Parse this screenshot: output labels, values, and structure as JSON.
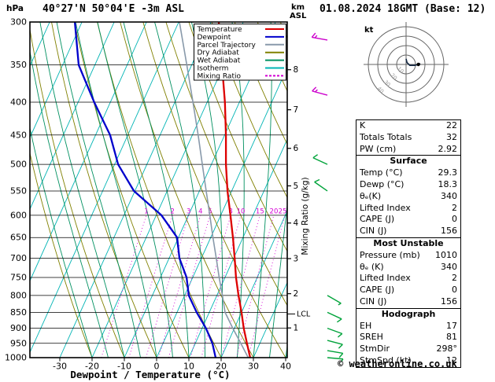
{
  "header": {
    "station_title": "40°27'N 50°04'E -3m ASL",
    "datetime_title": "01.08.2024 18GMT (Base: 12)"
  },
  "axes": {
    "pressure_unit_label": "hPa",
    "km_label": "km",
    "asl_label": "ASL",
    "x_axis_label": "Dewpoint / Temperature (°C)",
    "mixing_ratio_axis_label": "Mixing Ratio (g/kg)",
    "pressure_ticks_hpa": [
      300,
      350,
      400,
      450,
      500,
      550,
      600,
      650,
      700,
      750,
      800,
      850,
      900,
      950,
      1000
    ],
    "temperature_ticks_c": [
      -30,
      -20,
      -10,
      0,
      10,
      20,
      30,
      40
    ],
    "km_ticks": [
      [
        1,
        899
      ],
      [
        2,
        795
      ],
      [
        3,
        701
      ],
      [
        4,
        617
      ],
      [
        5,
        540
      ],
      [
        6,
        472
      ],
      [
        7,
        411
      ],
      [
        8,
        356
      ]
    ],
    "lcl": {
      "label": "LCL",
      "pressure_hpa": 855
    },
    "mixing_ratio_values_gkg": [
      1,
      2,
      3,
      4,
      5,
      8,
      10,
      15,
      20,
      25
    ]
  },
  "colors": {
    "temperature": "#dd0000",
    "dewpoint": "#0000cc",
    "parcel": "#8899aa",
    "dry_adiabat": "#808000",
    "wet_adiabat": "#009060",
    "isotherm": "#00b4b4",
    "mixing_ratio": "#d400d4",
    "barb_upper": "#cc00cc",
    "barb_lower": "#00a33a",
    "grid": "#000000"
  },
  "legend": {
    "items": [
      {
        "label": "Temperature",
        "color": "#dd0000",
        "dash": false
      },
      {
        "label": "Dewpoint",
        "color": "#0000cc",
        "dash": false
      },
      {
        "label": "Parcel Trajectory",
        "color": "#8899aa",
        "dash": false
      },
      {
        "label": "Dry Adiabat",
        "color": "#808000",
        "dash": false
      },
      {
        "label": "Wet Adiabat",
        "color": "#009060",
        "dash": false
      },
      {
        "label": "Isotherm",
        "color": "#00b4b4",
        "dash": false
      },
      {
        "label": "Mixing Ratio",
        "color": "#d400d4",
        "dash": true
      }
    ]
  },
  "chart_data": {
    "type": "line",
    "variant": "skew-t-log-p",
    "title": "40°27'N 50°04'E -3m ASL",
    "xlabel": "Dewpoint / Temperature (°C)",
    "ylabel": "hPa",
    "xlim_c": [
      -40,
      40
    ],
    "pressure_lim_hpa": [
      1000,
      300
    ],
    "levels_hpa": [
      1000,
      950,
      900,
      850,
      800,
      750,
      700,
      650,
      600,
      550,
      500,
      450,
      400,
      350,
      300
    ],
    "series": [
      {
        "name": "Temperature",
        "color": "#dd0000",
        "values_c": [
          29.0,
          26.0,
          22.9,
          20.0,
          16.7,
          13.4,
          10.3,
          6.9,
          3.0,
          -1.3,
          -5.5,
          -9.6,
          -14.5,
          -20.6,
          -27.6
        ]
      },
      {
        "name": "Dewpoint",
        "color": "#0000cc",
        "values_c": [
          18.3,
          15.3,
          11.2,
          6.1,
          1.3,
          -1.9,
          -6.8,
          -10.4,
          -18.4,
          -30.3,
          -38.9,
          -45.5,
          -55.0,
          -65.0,
          -72.2
        ]
      },
      {
        "name": "Parcel Trajectory",
        "color": "#8899aa",
        "values_c": [
          28.4,
          24.1,
          19.5,
          14.9,
          11.7,
          8.2,
          4.6,
          0.7,
          -3.4,
          -7.9,
          -12.8,
          -18.2,
          -24.4,
          -31.5,
          -39.8
        ]
      }
    ]
  },
  "wind_barbs": [
    {
      "p": 320,
      "dir": 280,
      "kt": 15,
      "color": "#cc00cc"
    },
    {
      "p": 390,
      "dir": 285,
      "kt": 15,
      "color": "#cc00cc"
    },
    {
      "p": 500,
      "dir": 295,
      "kt": 10,
      "color": "#00a33a"
    },
    {
      "p": 550,
      "dir": 305,
      "kt": 10,
      "color": "#00a33a"
    },
    {
      "p": 800,
      "dir": 120,
      "kt": 5,
      "color": "#00a33a"
    },
    {
      "p": 850,
      "dir": 115,
      "kt": 10,
      "color": "#00a33a"
    },
    {
      "p": 900,
      "dir": 110,
      "kt": 10,
      "color": "#00a33a"
    },
    {
      "p": 940,
      "dir": 105,
      "kt": 10,
      "color": "#00a33a"
    },
    {
      "p": 975,
      "dir": 100,
      "kt": 10,
      "color": "#00a33a"
    },
    {
      "p": 1000,
      "dir": 95,
      "kt": 5,
      "color": "#00a33a"
    }
  ],
  "hodograph": {
    "unit_label": "kt",
    "ring_step_kt": 10,
    "ring_labels": [
      "10",
      "20",
      "30",
      "40"
    ],
    "trace_uv_kt": [
      [
        0,
        6
      ],
      [
        1,
        2
      ],
      [
        4,
        -1
      ],
      [
        9,
        -1
      ],
      [
        13,
        0
      ],
      [
        15,
        1
      ]
    ],
    "marker_uv_kt": [
      13,
      0
    ]
  },
  "table": {
    "sections": [
      {
        "header": null,
        "rows": [
          [
            "K",
            "22"
          ],
          [
            "Totals Totals",
            "32"
          ],
          [
            "PW (cm)",
            "2.92"
          ]
        ]
      },
      {
        "header": "Surface",
        "rows": [
          [
            "Temp (°C)",
            "29.3"
          ],
          [
            "Dewp (°C)",
            "18.3"
          ],
          [
            "θₑ(K)",
            "340"
          ],
          [
            "Lifted Index",
            "2"
          ],
          [
            "CAPE (J)",
            "0"
          ],
          [
            "CIN (J)",
            "156"
          ]
        ]
      },
      {
        "header": "Most Unstable",
        "rows": [
          [
            "Pressure (mb)",
            "1010"
          ],
          [
            "θₑ (K)",
            "340"
          ],
          [
            "Lifted Index",
            "2"
          ],
          [
            "CAPE (J)",
            "0"
          ],
          [
            "CIN (J)",
            "156"
          ]
        ]
      },
      {
        "header": "Hodograph",
        "rows": [
          [
            "EH",
            "17"
          ],
          [
            "SREH",
            "81"
          ],
          [
            "StmDir",
            "298°"
          ],
          [
            "StmSpd (kt)",
            "12"
          ]
        ]
      }
    ]
  },
  "footer": {
    "copyright": "© weatheronline.co.uk"
  }
}
